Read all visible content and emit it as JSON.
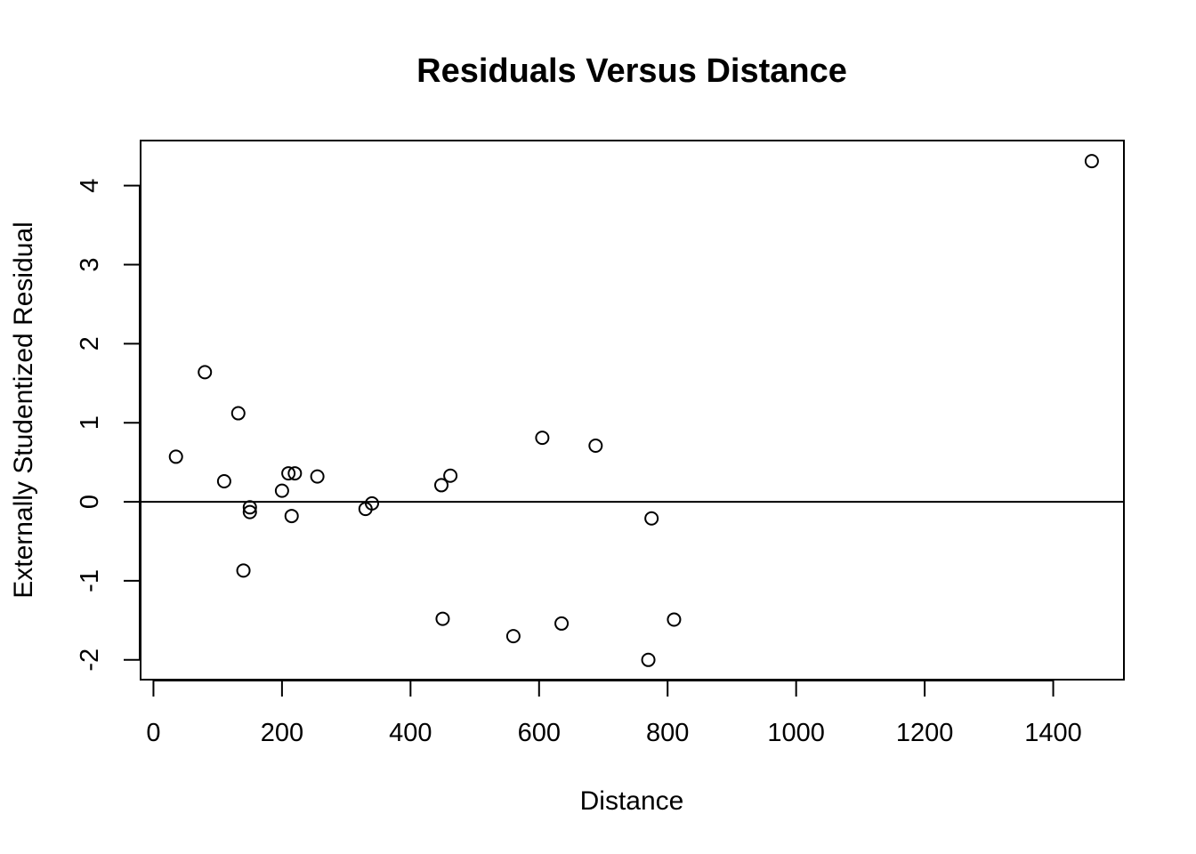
{
  "chart_data": {
    "type": "scatter",
    "title": "Residuals Versus Distance",
    "xlabel": "Distance",
    "ylabel": "Externally Studentized Residual",
    "xlim": [
      -20,
      1510
    ],
    "ylim": [
      -2.25,
      4.57
    ],
    "x_ticks": [
      0,
      200,
      400,
      600,
      800,
      1000,
      1200,
      1400
    ],
    "y_ticks": [
      -2,
      -1,
      0,
      1,
      2,
      3,
      4
    ],
    "reference_line_y": 0,
    "grid": false,
    "points": [
      {
        "x": 35,
        "y": 0.57
      },
      {
        "x": 80,
        "y": 1.64
      },
      {
        "x": 110,
        "y": 0.26
      },
      {
        "x": 132,
        "y": 1.12
      },
      {
        "x": 140,
        "y": -0.87
      },
      {
        "x": 150,
        "y": -0.07
      },
      {
        "x": 150,
        "y": -0.13
      },
      {
        "x": 200,
        "y": 0.14
      },
      {
        "x": 210,
        "y": 0.36
      },
      {
        "x": 215,
        "y": -0.18
      },
      {
        "x": 220,
        "y": 0.36
      },
      {
        "x": 255,
        "y": 0.32
      },
      {
        "x": 330,
        "y": -0.09
      },
      {
        "x": 340,
        "y": -0.02
      },
      {
        "x": 448,
        "y": 0.21
      },
      {
        "x": 450,
        "y": -1.48
      },
      {
        "x": 462,
        "y": 0.33
      },
      {
        "x": 560,
        "y": -1.7
      },
      {
        "x": 605,
        "y": 0.81
      },
      {
        "x": 635,
        "y": -1.54
      },
      {
        "x": 688,
        "y": 0.71
      },
      {
        "x": 770,
        "y": -2.0
      },
      {
        "x": 775,
        "y": -0.21
      },
      {
        "x": 810,
        "y": -1.49
      },
      {
        "x": 1460,
        "y": 4.31
      }
    ]
  }
}
